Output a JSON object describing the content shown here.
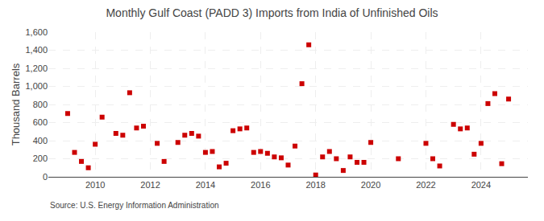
{
  "chart_data": {
    "type": "scatter",
    "title": "Monthly Gulf Coast (PADD 3) Imports from India of Unfinished Oils",
    "ylabel": "Thousand Barrels",
    "source": "Source: U.S. Energy Information Administration",
    "color": "#cc0000",
    "marker": "square",
    "grid": true,
    "xlim": [
      2008.3,
      2025.7
    ],
    "xticks": [
      2010,
      2012,
      2014,
      2016,
      2018,
      2020,
      2022,
      2024
    ],
    "ylim": [
      0,
      1600
    ],
    "yticks": [
      0,
      200,
      400,
      600,
      800,
      {
        "value": 1000,
        "label": "1,000"
      },
      {
        "value": 1200,
        "label": "1,200"
      },
      {
        "value": 1400,
        "label": "1,400"
      },
      {
        "value": 1600,
        "label": "1,600"
      }
    ],
    "x": [
      2009.0,
      2009.25,
      2009.5,
      2009.75,
      2010.0,
      2010.25,
      2010.75,
      2011.0,
      2011.25,
      2011.5,
      2011.75,
      2012.25,
      2012.5,
      2013.0,
      2013.25,
      2013.5,
      2013.75,
      2014.0,
      2014.25,
      2014.5,
      2014.75,
      2015.0,
      2015.25,
      2015.5,
      2015.75,
      2016.0,
      2016.25,
      2016.5,
      2016.75,
      2017.0,
      2017.25,
      2017.5,
      2017.75,
      2018.0,
      2018.25,
      2018.5,
      2018.75,
      2019.0,
      2019.25,
      2019.5,
      2019.75,
      2020.0,
      2021.0,
      2022.0,
      2022.25,
      2022.5,
      2023.0,
      2023.25,
      2023.5,
      2023.75,
      2024.0,
      2024.25,
      2024.5,
      2024.75,
      2025.0
    ],
    "values": [
      700,
      270,
      170,
      100,
      360,
      660,
      480,
      460,
      930,
      540,
      560,
      370,
      170,
      380,
      460,
      480,
      450,
      270,
      280,
      110,
      150,
      510,
      530,
      540,
      270,
      280,
      260,
      220,
      210,
      130,
      340,
      1030,
      1460,
      20,
      220,
      280,
      200,
      70,
      220,
      160,
      160,
      380,
      200,
      370,
      200,
      120,
      580,
      530,
      540,
      250,
      370,
      810,
      920,
      145,
      860
    ]
  }
}
